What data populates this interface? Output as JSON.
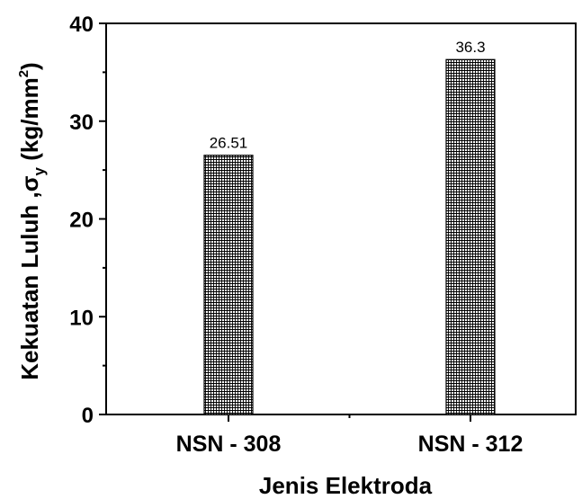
{
  "chart_data": {
    "type": "bar",
    "categories": [
      "NSN - 308",
      "NSN - 312"
    ],
    "values": [
      26.51,
      36.3
    ],
    "data_labels": [
      "26.51",
      "36.3"
    ],
    "xlabel": "Jenis Elektroda",
    "ylabel": {
      "main": "Kekuatan Luluh ,",
      "symbol": "σ",
      "subscript": "y",
      "unit_open": " (kg/mm",
      "unit_sup": "2",
      "unit_close": ")"
    },
    "ylim": [
      0,
      40
    ],
    "yticks": [
      0,
      10,
      20,
      30,
      40
    ],
    "y_minor_step": 5,
    "grid": false,
    "legend": "none",
    "bar_fill": "crosshatch",
    "colors": {
      "bar_line": "#000000",
      "bar_bg": "#ffffff",
      "axis": "#000000"
    }
  }
}
